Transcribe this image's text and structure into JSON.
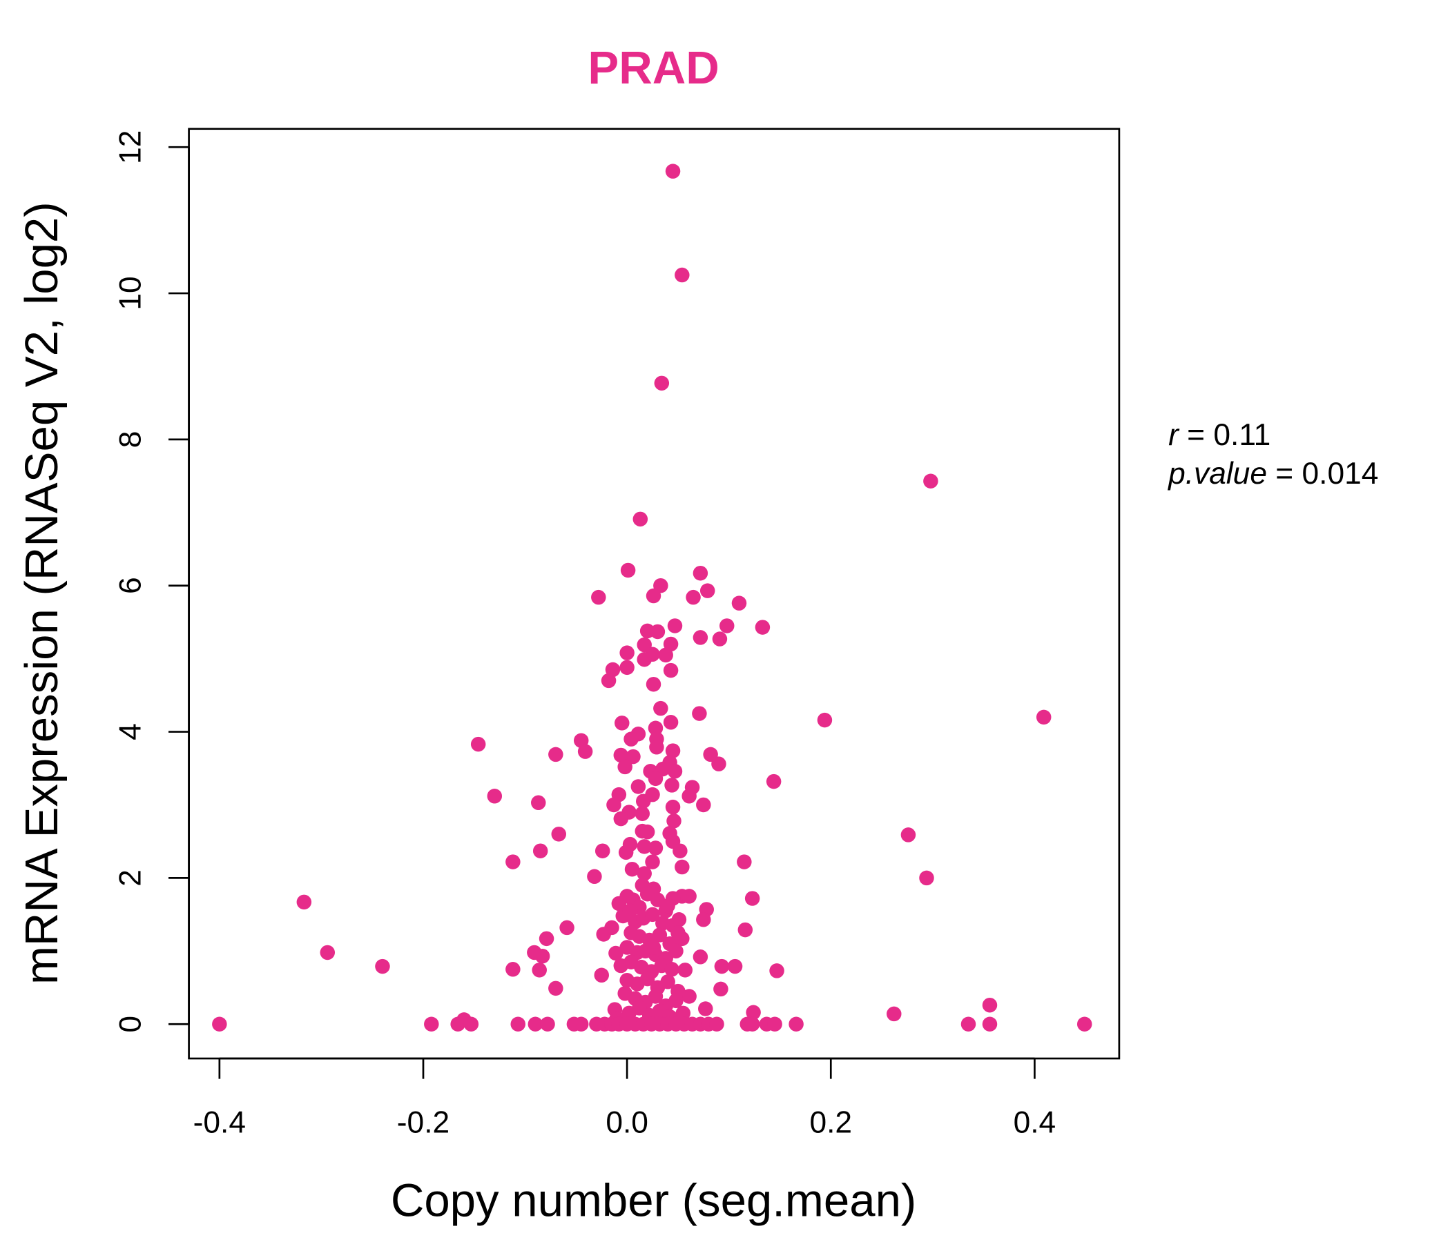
{
  "chart_data": {
    "type": "scatter",
    "title": "PRAD",
    "xlabel": "Copy number (seg.mean)",
    "ylabel": "mRNA Expression (RNASeq V2, log2)",
    "xlim": [
      -0.43,
      0.483
    ],
    "ylim": [
      -0.47,
      12.25
    ],
    "xticks": [
      -0.4,
      -0.2,
      0.0,
      0.2,
      0.4
    ],
    "xtick_labels": [
      "-0.4",
      "-0.2",
      "0.0",
      "0.2",
      "0.4"
    ],
    "yticks": [
      0,
      2,
      4,
      6,
      8,
      10,
      12
    ],
    "ytick_labels": [
      "0",
      "2",
      "4",
      "6",
      "8",
      "10",
      "12"
    ],
    "grid": false,
    "color": "#E62B8A",
    "annotation": {
      "r_label": "r",
      "r_value": "0.11",
      "p_label": "p.value",
      "p_value": "0.014"
    },
    "points": [
      [
        0.045,
        11.67
      ],
      [
        0.054,
        10.25
      ],
      [
        0.034,
        8.77
      ],
      [
        0.298,
        7.43
      ],
      [
        0.013,
        6.91
      ],
      [
        0.001,
        6.21
      ],
      [
        0.072,
        6.17
      ],
      [
        0.033,
        6.0
      ],
      [
        -0.028,
        5.84
      ],
      [
        0.026,
        5.86
      ],
      [
        0.065,
        5.84
      ],
      [
        0.079,
        5.93
      ],
      [
        0.11,
        5.76
      ],
      [
        0.047,
        5.45
      ],
      [
        0.098,
        5.45
      ],
      [
        0.133,
        5.43
      ],
      [
        0.02,
        5.38
      ],
      [
        0.03,
        5.37
      ],
      [
        0.072,
        5.29
      ],
      [
        0.091,
        5.27
      ],
      [
        0.017,
        5.19
      ],
      [
        0.043,
        5.2
      ],
      [
        0.0,
        5.08
      ],
      [
        0.025,
        5.06
      ],
      [
        0.038,
        5.05
      ],
      [
        0.017,
        4.99
      ],
      [
        -0.014,
        4.85
      ],
      [
        0.0,
        4.88
      ],
      [
        0.043,
        4.84
      ],
      [
        -0.018,
        4.7
      ],
      [
        0.026,
        4.65
      ],
      [
        0.033,
        4.32
      ],
      [
        0.071,
        4.25
      ],
      [
        -0.005,
        4.12
      ],
      [
        0.043,
        4.13
      ],
      [
        0.194,
        4.16
      ],
      [
        0.409,
        4.2
      ],
      [
        0.028,
        4.05
      ],
      [
        0.011,
        3.97
      ],
      [
        0.004,
        3.9
      ],
      [
        0.029,
        3.9
      ],
      [
        -0.146,
        3.83
      ],
      [
        -0.045,
        3.88
      ],
      [
        0.029,
        3.79
      ],
      [
        -0.041,
        3.73
      ],
      [
        -0.07,
        3.69
      ],
      [
        -0.006,
        3.68
      ],
      [
        0.006,
        3.66
      ],
      [
        0.045,
        3.74
      ],
      [
        0.082,
        3.69
      ],
      [
        -0.002,
        3.52
      ],
      [
        0.042,
        3.58
      ],
      [
        0.09,
        3.56
      ],
      [
        0.023,
        3.46
      ],
      [
        0.035,
        3.49
      ],
      [
        0.047,
        3.46
      ],
      [
        0.028,
        3.36
      ],
      [
        0.144,
        3.32
      ],
      [
        0.011,
        3.25
      ],
      [
        0.044,
        3.27
      ],
      [
        0.064,
        3.24
      ],
      [
        -0.008,
        3.14
      ],
      [
        -0.13,
        3.12
      ],
      [
        0.025,
        3.14
      ],
      [
        0.061,
        3.12
      ],
      [
        0.016,
        3.05
      ],
      [
        -0.087,
        3.03
      ],
      [
        -0.013,
        3.0
      ],
      [
        0.075,
        3.0
      ],
      [
        0.045,
        2.97
      ],
      [
        0.002,
        2.9
      ],
      [
        0.015,
        2.88
      ],
      [
        -0.006,
        2.81
      ],
      [
        0.046,
        2.78
      ],
      [
        -0.067,
        2.6
      ],
      [
        0.276,
        2.59
      ],
      [
        0.015,
        2.64
      ],
      [
        0.02,
        2.63
      ],
      [
        0.042,
        2.61
      ],
      [
        0.003,
        2.46
      ],
      [
        0.045,
        2.5
      ],
      [
        0.017,
        2.43
      ],
      [
        0.028,
        2.41
      ],
      [
        -0.085,
        2.37
      ],
      [
        -0.024,
        2.37
      ],
      [
        0.052,
        2.37
      ],
      [
        -0.001,
        2.35
      ],
      [
        -0.112,
        2.22
      ],
      [
        0.115,
        2.22
      ],
      [
        0.025,
        2.22
      ],
      [
        0.005,
        2.12
      ],
      [
        0.054,
        2.15
      ],
      [
        0.017,
        2.06
      ],
      [
        -0.032,
        2.02
      ],
      [
        0.294,
        2.0
      ],
      [
        0.026,
        1.85
      ],
      [
        -0.317,
        1.67
      ],
      [
        0.123,
        1.72
      ],
      [
        0.054,
        1.75
      ],
      [
        0.061,
        1.75
      ],
      [
        0.078,
        1.57
      ],
      [
        0.075,
        1.43
      ],
      [
        0.051,
        1.43
      ],
      [
        -0.059,
        1.32
      ],
      [
        -0.015,
        1.32
      ],
      [
        -0.023,
        1.23
      ],
      [
        0.116,
        1.29
      ],
      [
        -0.079,
        1.17
      ],
      [
        0.054,
        1.17
      ],
      [
        -0.294,
        0.98
      ],
      [
        -0.091,
        0.98
      ],
      [
        -0.083,
        0.93
      ],
      [
        0.072,
        0.92
      ],
      [
        -0.011,
        0.97
      ],
      [
        0.093,
        0.79
      ],
      [
        0.106,
        0.79
      ],
      [
        -0.24,
        0.79
      ],
      [
        -0.112,
        0.75
      ],
      [
        -0.086,
        0.74
      ],
      [
        0.147,
        0.73
      ],
      [
        0.057,
        0.74
      ],
      [
        -0.025,
        0.67
      ],
      [
        -0.07,
        0.49
      ],
      [
        0.092,
        0.48
      ],
      [
        0.061,
        0.38
      ],
      [
        0.262,
        0.14
      ],
      [
        0.356,
        0.26
      ],
      [
        0.124,
        0.16
      ],
      [
        0.077,
        0.21
      ],
      [
        -0.008,
        1.65
      ],
      [
        0.0,
        1.75
      ],
      [
        0.006,
        1.7
      ],
      [
        0.012,
        1.6
      ],
      [
        0.02,
        1.78
      ],
      [
        0.03,
        1.7
      ],
      [
        0.038,
        1.55
      ],
      [
        0.045,
        1.72
      ],
      [
        -0.004,
        1.48
      ],
      [
        0.008,
        1.4
      ],
      [
        0.016,
        1.45
      ],
      [
        0.025,
        1.5
      ],
      [
        0.035,
        1.38
      ],
      [
        0.045,
        1.35
      ],
      [
        0.004,
        1.25
      ],
      [
        0.012,
        1.2
      ],
      [
        0.022,
        1.15
      ],
      [
        0.032,
        1.22
      ],
      [
        0.042,
        1.1
      ],
      [
        0.05,
        1.25
      ],
      [
        0.0,
        1.05
      ],
      [
        0.01,
        0.98
      ],
      [
        0.018,
        1.0
      ],
      [
        0.028,
        0.95
      ],
      [
        0.038,
        0.9
      ],
      [
        0.048,
        1.0
      ],
      [
        -0.006,
        0.8
      ],
      [
        0.004,
        0.85
      ],
      [
        0.014,
        0.78
      ],
      [
        0.024,
        0.72
      ],
      [
        0.034,
        0.8
      ],
      [
        0.044,
        0.75
      ],
      [
        0.0,
        0.6
      ],
      [
        0.01,
        0.55
      ],
      [
        0.02,
        0.62
      ],
      [
        0.03,
        0.5
      ],
      [
        0.04,
        0.58
      ],
      [
        0.05,
        0.45
      ],
      [
        -0.002,
        0.42
      ],
      [
        0.008,
        0.35
      ],
      [
        0.018,
        0.3
      ],
      [
        0.028,
        0.38
      ],
      [
        0.038,
        0.25
      ],
      [
        0.048,
        0.32
      ],
      [
        -0.012,
        0.2
      ],
      [
        0.002,
        0.15
      ],
      [
        0.012,
        0.22
      ],
      [
        0.022,
        0.12
      ],
      [
        0.032,
        0.18
      ],
      [
        0.042,
        0.1
      ],
      [
        -0.01,
        0.08
      ],
      [
        0.055,
        0.15
      ],
      [
        0.015,
        1.9
      ],
      [
        0.003,
        1.55
      ],
      [
        0.04,
        1.62
      ],
      [
        0.026,
        1.05
      ],
      [
        -0.4,
        0.0
      ],
      [
        -0.192,
        0.0
      ],
      [
        -0.166,
        0.0
      ],
      [
        -0.16,
        0.06
      ],
      [
        -0.153,
        0.0
      ],
      [
        -0.107,
        0.0
      ],
      [
        -0.09,
        0.0
      ],
      [
        -0.078,
        0.0
      ],
      [
        -0.052,
        0.0
      ],
      [
        -0.045,
        0.0
      ],
      [
        -0.03,
        0.0
      ],
      [
        -0.022,
        0.0
      ],
      [
        -0.015,
        0.0
      ],
      [
        -0.008,
        0.0
      ],
      [
        0.0,
        0.0
      ],
      [
        0.008,
        0.0
      ],
      [
        0.016,
        0.0
      ],
      [
        0.024,
        0.0
      ],
      [
        0.032,
        0.0
      ],
      [
        0.04,
        0.0
      ],
      [
        0.048,
        0.0
      ],
      [
        0.056,
        0.0
      ],
      [
        0.064,
        0.0
      ],
      [
        0.072,
        0.0
      ],
      [
        0.08,
        0.0
      ],
      [
        0.088,
        0.0
      ],
      [
        0.118,
        0.0
      ],
      [
        0.123,
        0.0
      ],
      [
        0.137,
        0.0
      ],
      [
        0.145,
        0.0
      ],
      [
        0.166,
        0.0
      ],
      [
        0.335,
        0.0
      ],
      [
        0.356,
        0.0
      ],
      [
        0.449,
        0.0
      ]
    ]
  }
}
